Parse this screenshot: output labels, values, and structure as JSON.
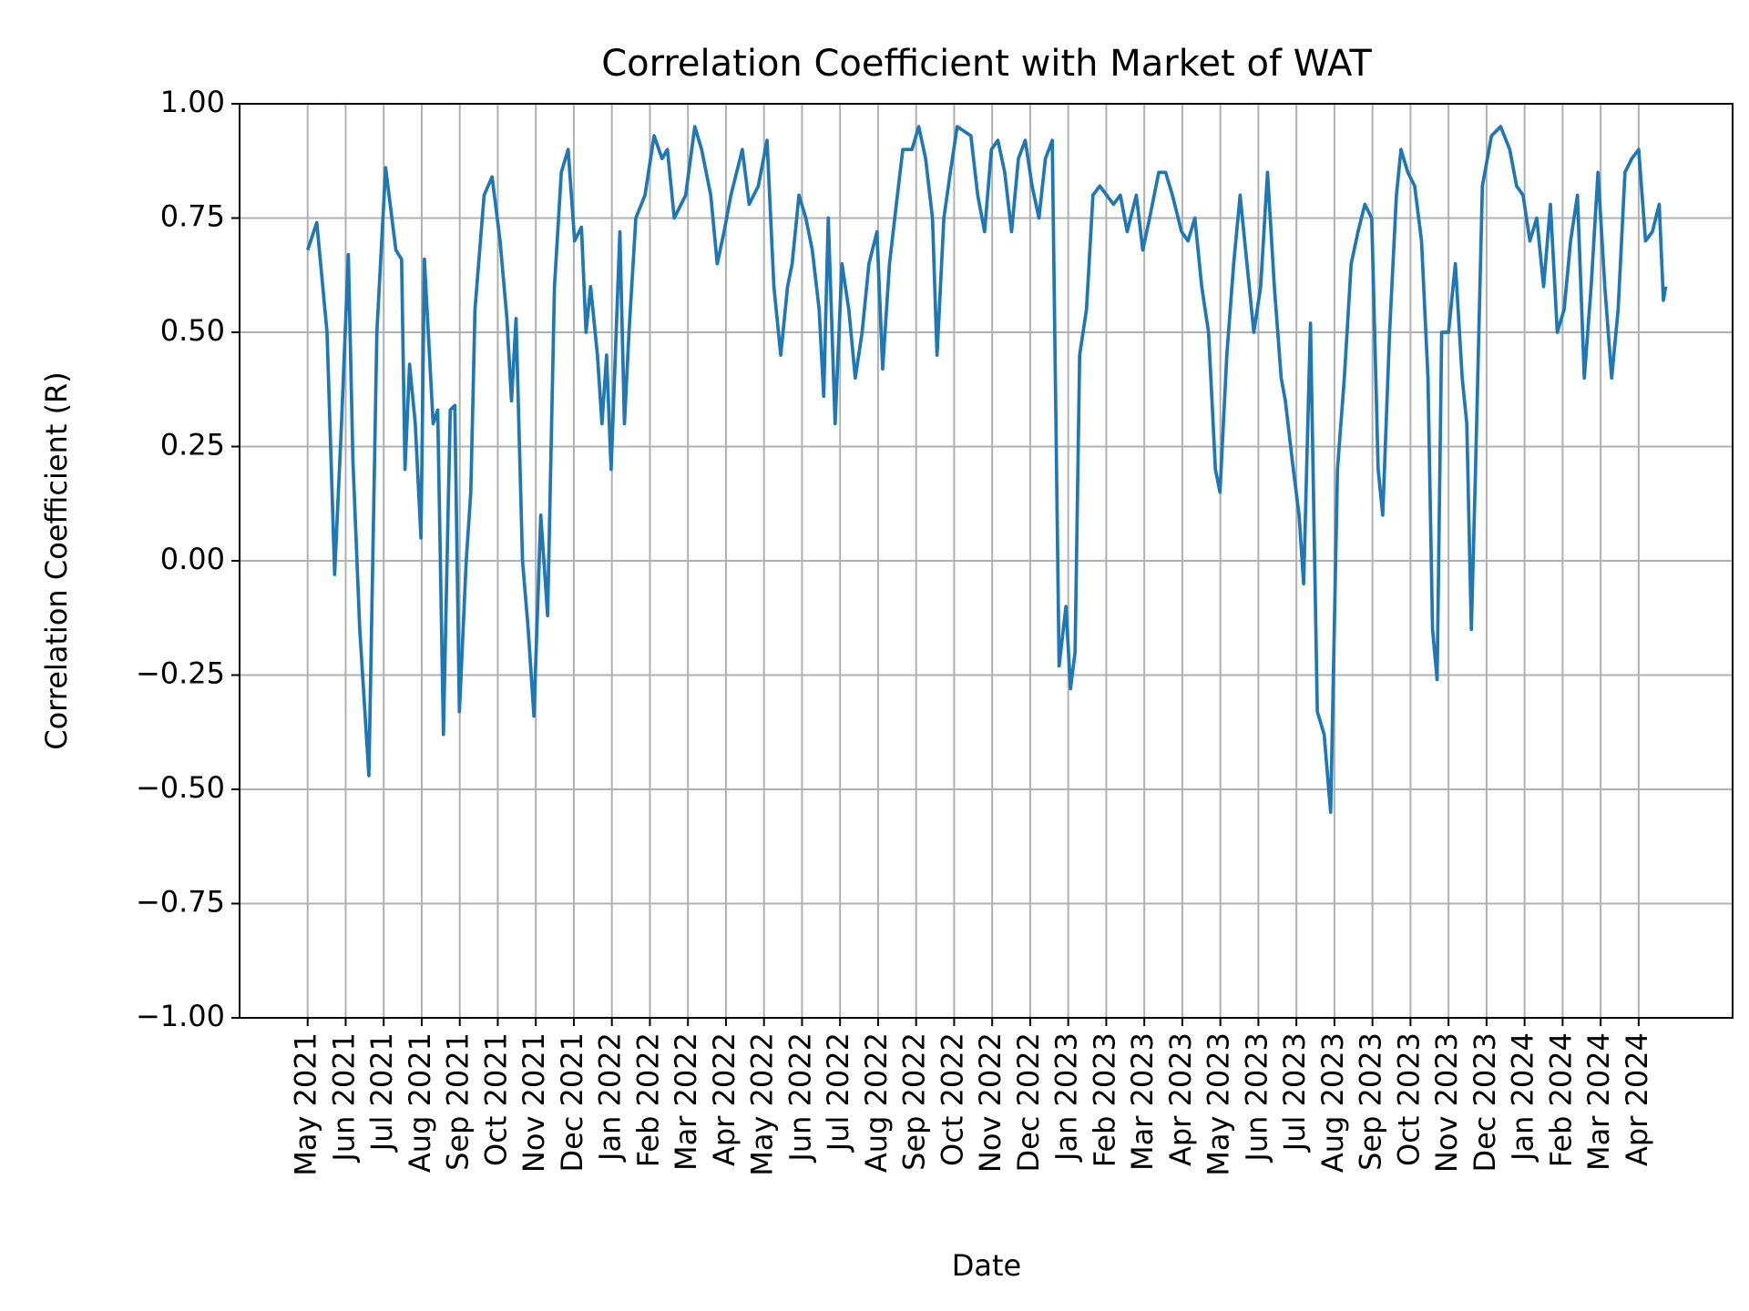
{
  "chart_data": {
    "type": "line",
    "title": "Correlation Coefficient with Market of WAT",
    "xlabel": "Date",
    "ylabel": "Correlation Coefficient (R)",
    "color": "#1f77b4",
    "grid": true,
    "x": [
      0,
      0.24,
      0.51,
      0.71,
      0.89,
      1.07,
      1.19,
      1.37,
      1.61,
      1.82,
      2.05,
      2.32,
      2.47,
      2.56,
      2.68,
      2.83,
      2.98,
      3.07,
      3.3,
      3.42,
      3.57,
      3.75,
      3.87,
      3.99,
      4.17,
      4.29,
      4.4,
      4.64,
      4.85,
      5.06,
      5.24,
      5.36,
      5.48,
      5.65,
      5.8,
      5.95,
      6.13,
      6.31,
      6.49,
      6.67,
      6.85,
      7.02,
      7.2,
      7.32,
      7.44,
      7.62,
      7.74,
      7.86,
      7.98,
      8.21,
      8.33,
      8.45,
      8.63,
      8.87,
      9.11,
      9.32,
      9.46,
      9.64,
      9.94,
      10.18,
      10.36,
      10.6,
      10.77,
      10.95,
      11.13,
      11.43,
      11.61,
      11.85,
      12.08,
      12.26,
      12.44,
      12.62,
      12.74,
      12.92,
      13.1,
      13.27,
      13.45,
      13.57,
      13.69,
      13.87,
      14.05,
      14.23,
      14.4,
      14.58,
      14.76,
      14.97,
      15.12,
      15.3,
      15.48,
      15.65,
      15.89,
      16.07,
      16.25,
      16.43,
      16.55,
      16.73,
      16.9,
      17.08,
      17.26,
      17.44,
      17.62,
      17.8,
      17.98,
      18.15,
      18.33,
      18.51,
      18.69,
      18.87,
      19.05,
      19.23,
      19.4,
      19.58,
      19.76,
      19.94,
      20.06,
      20.18,
      20.3,
      20.48,
      20.65,
      20.83,
      21.01,
      21.19,
      21.37,
      21.55,
      21.79,
      21.96,
      22.14,
      22.38,
      22.56,
      22.74,
      22.98,
      23.15,
      23.33,
      23.51,
      23.69,
      23.87,
      23.99,
      24.17,
      24.35,
      24.52,
      24.7,
      24.88,
      25.06,
      25.24,
      25.42,
      25.6,
      25.71,
      25.89,
      26.07,
      26.19,
      26.37,
      26.55,
      26.73,
      26.9,
      27.08,
      27.26,
      27.44,
      27.62,
      27.8,
      27.98,
      28.15,
      28.27,
      28.45,
      28.63,
      28.75,
      28.93,
      29.11,
      29.29,
      29.46,
      29.58,
      29.7,
      29.82,
      30,
      30.18,
      30.36,
      30.48,
      30.6,
      30.71,
      30.89,
      31.13,
      31.37,
      31.61,
      31.79,
      31.96,
      32.14,
      32.32,
      32.5,
      32.68,
      32.86,
      33.04,
      33.21,
      33.39,
      33.57,
      33.75,
      33.93,
      34.11,
      34.29,
      34.46,
      34.64,
      34.82,
      35,
      35.18,
      35.36,
      35.54,
      35.65,
      35.71
    ],
    "values": [
      0.68,
      0.74,
      0.5,
      -0.03,
      0.3,
      0.67,
      0.22,
      -0.15,
      -0.47,
      0.5,
      0.86,
      0.68,
      0.66,
      0.2,
      0.43,
      0.3,
      0.05,
      0.66,
      0.3,
      0.33,
      -0.38,
      0.33,
      0.34,
      -0.33,
      0,
      0.15,
      0.55,
      0.8,
      0.84,
      0.7,
      0.53,
      0.35,
      0.53,
      0,
      -0.15,
      -0.34,
      0.1,
      -0.12,
      0.6,
      0.85,
      0.9,
      0.7,
      0.73,
      0.5,
      0.6,
      0.45,
      0.3,
      0.45,
      0.2,
      0.72,
      0.3,
      0.5,
      0.75,
      0.8,
      0.93,
      0.88,
      0.9,
      0.75,
      0.8,
      0.95,
      0.9,
      0.8,
      0.65,
      0.72,
      0.8,
      0.9,
      0.78,
      0.82,
      0.92,
      0.6,
      0.45,
      0.6,
      0.65,
      0.8,
      0.75,
      0.68,
      0.55,
      0.36,
      0.75,
      0.3,
      0.65,
      0.55,
      0.4,
      0.5,
      0.65,
      0.72,
      0.42,
      0.65,
      0.78,
      0.9,
      0.9,
      0.95,
      0.88,
      0.75,
      0.45,
      0.75,
      0.85,
      0.95,
      0.94,
      0.93,
      0.8,
      0.72,
      0.9,
      0.92,
      0.85,
      0.72,
      0.88,
      0.92,
      0.82,
      0.75,
      0.88,
      0.92,
      -0.23,
      -0.1,
      -0.28,
      -0.2,
      0.45,
      0.55,
      0.8,
      0.82,
      0.8,
      0.78,
      0.8,
      0.72,
      0.8,
      0.68,
      0.75,
      0.85,
      0.85,
      0.8,
      0.72,
      0.7,
      0.75,
      0.6,
      0.5,
      0.2,
      0.15,
      0.45,
      0.65,
      0.8,
      0.65,
      0.5,
      0.6,
      0.85,
      0.6,
      0.4,
      0.35,
      0.22,
      0.1,
      -0.05,
      0.52,
      -0.33,
      -0.38,
      -0.55,
      0.2,
      0.4,
      0.65,
      0.72,
      0.78,
      0.75,
      0.2,
      0.1,
      0.5,
      0.8,
      0.9,
      0.85,
      0.82,
      0.7,
      0.4,
      -0.15,
      -0.26,
      0.5,
      0.5,
      0.65,
      0.4,
      0.3,
      -0.15,
      0.2,
      0.82,
      0.93,
      0.95,
      0.9,
      0.82,
      0.8,
      0.7,
      0.75,
      0.6,
      0.78,
      0.5,
      0.55,
      0.7,
      0.8,
      0.4,
      0.6,
      0.85,
      0.6,
      0.4,
      0.55,
      0.85,
      0.88,
      0.9,
      0.7,
      0.72,
      0.78,
      0.57,
      0.6
    ],
    "xlim": [
      -1.79,
      37.47
    ],
    "xticks": [
      {
        "value": 0,
        "label": "May 2021"
      },
      {
        "value": 1,
        "label": "Jun 2021"
      },
      {
        "value": 2,
        "label": "Jul 2021"
      },
      {
        "value": 3,
        "label": "Aug 2021"
      },
      {
        "value": 4,
        "label": "Sep 2021"
      },
      {
        "value": 5,
        "label": "Oct 2021"
      },
      {
        "value": 6,
        "label": "Nov 2021"
      },
      {
        "value": 7,
        "label": "Dec 2021"
      },
      {
        "value": 8,
        "label": "Jan 2022"
      },
      {
        "value": 9,
        "label": "Feb 2022"
      },
      {
        "value": 10,
        "label": "Mar 2022"
      },
      {
        "value": 11,
        "label": "Apr 2022"
      },
      {
        "value": 12,
        "label": "May 2022"
      },
      {
        "value": 13,
        "label": "Jun 2022"
      },
      {
        "value": 14,
        "label": "Jul 2022"
      },
      {
        "value": 15,
        "label": "Aug 2022"
      },
      {
        "value": 16,
        "label": "Sep 2022"
      },
      {
        "value": 17,
        "label": "Oct 2022"
      },
      {
        "value": 18,
        "label": "Nov 2022"
      },
      {
        "value": 19,
        "label": "Dec 2022"
      },
      {
        "value": 20,
        "label": "Jan 2023"
      },
      {
        "value": 21,
        "label": "Feb 2023"
      },
      {
        "value": 22,
        "label": "Mar 2023"
      },
      {
        "value": 23,
        "label": "Apr 2023"
      },
      {
        "value": 24,
        "label": "May 2023"
      },
      {
        "value": 25,
        "label": "Jun 2023"
      },
      {
        "value": 26,
        "label": "Jul 2023"
      },
      {
        "value": 27,
        "label": "Aug 2023"
      },
      {
        "value": 28,
        "label": "Sep 2023"
      },
      {
        "value": 29,
        "label": "Oct 2023"
      },
      {
        "value": 30,
        "label": "Nov 2023"
      },
      {
        "value": 31,
        "label": "Dec 2023"
      },
      {
        "value": 32,
        "label": "Jan 2024"
      },
      {
        "value": 33,
        "label": "Feb 2024"
      },
      {
        "value": 34,
        "label": "Mar 2024"
      },
      {
        "value": 35,
        "label": "Apr 2024"
      }
    ],
    "ylim": [
      -1,
      1
    ],
    "yticks": [
      {
        "value": -1,
        "label": "−1.00"
      },
      {
        "value": -0.75,
        "label": "−0.75"
      },
      {
        "value": -0.5,
        "label": "−0.50"
      },
      {
        "value": -0.25,
        "label": "−0.25"
      },
      {
        "value": 0,
        "label": "0.00"
      },
      {
        "value": 0.25,
        "label": "0.25"
      },
      {
        "value": 0.5,
        "label": "0.50"
      },
      {
        "value": 0.75,
        "label": "0.75"
      },
      {
        "value": 1,
        "label": "1.00"
      }
    ]
  }
}
